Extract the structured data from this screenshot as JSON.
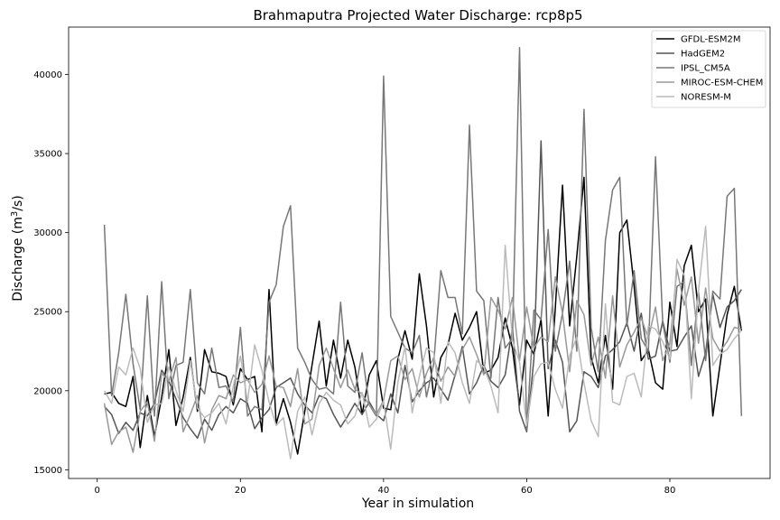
{
  "chart_data": {
    "type": "line",
    "title": "Brahmaputra Projected Water Discharge: rcp8p5",
    "xlabel": "Year in simulation",
    "ylabel_main": "Discharge (m",
    "ylabel_sup": "3",
    "ylabel_tail": "/s)",
    "xlim": [
      -4,
      94
    ],
    "ylim": [
      14450,
      43000
    ],
    "xticks": [
      0,
      20,
      40,
      60,
      80
    ],
    "yticks": [
      15000,
      20000,
      25000,
      30000,
      35000,
      40000
    ],
    "grid": false,
    "legend_position": "top-right",
    "series": [
      {
        "name": "GFDL-ESM2M",
        "color": "#000000",
        "values": [
          19800,
          19900,
          19200,
          19000,
          20900,
          16400,
          19700,
          17100,
          19600,
          22600,
          17800,
          19600,
          22100,
          18700,
          22600,
          21200,
          21100,
          20900,
          19100,
          21400,
          20700,
          20900,
          17400,
          26400,
          17900,
          19500,
          18000,
          16000,
          18700,
          21600,
          24400,
          20300,
          23200,
          20800,
          23200,
          21500,
          18500,
          21000,
          21900,
          18900,
          18800,
          22000,
          23800,
          22000,
          27400,
          24100,
          19600,
          22100,
          22900,
          24900,
          23200,
          24000,
          25000,
          21100,
          21300,
          22100,
          24600,
          22700,
          19100,
          23200,
          22300,
          24500,
          18400,
          25200,
          33000,
          24100,
          28500,
          33500,
          22100,
          20500,
          23500,
          20100,
          30000,
          30800,
          26600,
          21900,
          22600,
          20500,
          20100,
          25600,
          22800,
          27900,
          29200,
          25000,
          25800,
          18400,
          21600,
          24800,
          26600,
          23800
        ]
      },
      {
        "name": "HadGEM2",
        "color": "#555555",
        "values": [
          19000,
          18500,
          17300,
          18000,
          17500,
          18600,
          18400,
          19200,
          21300,
          20600,
          19500,
          18300,
          17600,
          17000,
          18200,
          17500,
          18500,
          19000,
          18600,
          19500,
          19200,
          17600,
          18300,
          18800,
          20200,
          20500,
          20800,
          19800,
          19100,
          18600,
          19700,
          19500,
          18500,
          17700,
          18400,
          19200,
          18500,
          19300,
          18500,
          18100,
          19800,
          18600,
          21600,
          19300,
          20000,
          20500,
          20800,
          20100,
          19400,
          21000,
          22800,
          19800,
          20500,
          21600,
          20600,
          20200,
          21000,
          24000,
          18700,
          17400,
          22000,
          35800,
          21400,
          23200,
          21800,
          17400,
          18100,
          21200,
          20900,
          20200,
          22200,
          22600,
          23100,
          24300,
          22500,
          24900,
          22000,
          22200,
          24400,
          22500,
          22600,
          23400,
          24100,
          20900,
          22400,
          26100,
          24000,
          25300,
          25700,
          26400
        ]
      },
      {
        "name": "IPSL_CM5A",
        "color": "#777777",
        "values": [
          30500,
          19700,
          22400,
          26100,
          21700,
          18800,
          26000,
          18400,
          26900,
          19500,
          21600,
          21800,
          26400,
          20500,
          19800,
          22700,
          20200,
          20300,
          19300,
          24000,
          18400,
          19000,
          18800,
          25600,
          26700,
          30400,
          31700,
          22700,
          21800,
          20700,
          20100,
          20200,
          19800,
          25600,
          20300,
          19900,
          22400,
          19100,
          18400,
          39900,
          24700,
          23700,
          22700,
          22400,
          23500,
          19600,
          21700,
          27600,
          25900,
          25900,
          23600,
          36800,
          26300,
          25700,
          20800,
          25900,
          22700,
          23300,
          41700,
          17500,
          25100,
          24500,
          30200,
          22500,
          24900,
          28200,
          22500,
          37800,
          24000,
          21200,
          29500,
          32700,
          33500,
          24100,
          27600,
          23300,
          22500,
          34800,
          24300,
          21800,
          26600,
          26900,
          21600,
          26300,
          21900,
          26300,
          25800,
          32300,
          32800,
          18400
        ]
      },
      {
        "name": "MIROC-ESM-CHEM",
        "color": "#999999",
        "values": [
          19200,
          16600,
          17400,
          17700,
          16100,
          18700,
          19300,
          16800,
          21100,
          20600,
          22100,
          17400,
          18500,
          19700,
          16700,
          18800,
          19700,
          19500,
          21000,
          20500,
          20700,
          19900,
          20400,
          22200,
          20300,
          20200,
          19000,
          21400,
          17900,
          18200,
          21600,
          22700,
          21400,
          20200,
          21300,
          20100,
          19800,
          19100,
          18500,
          19400,
          21900,
          22200,
          20700,
          21400,
          19600,
          21100,
          22100,
          20600,
          21500,
          20900,
          22600,
          23400,
          22300,
          21000,
          25900,
          25100,
          23900,
          25900,
          21900,
          25300,
          22700,
          23400,
          23100,
          27200,
          24900,
          21200,
          25700,
          24800,
          21600,
          23400,
          20800,
          26000,
          21500,
          22900,
          23700,
          24600,
          23300,
          25300,
          21900,
          23000,
          27700,
          25400,
          27200,
          23000,
          26500,
          23300,
          22500,
          23100,
          24000,
          23900
        ]
      },
      {
        "name": "NORESM-M",
        "color": "#bbbbbb",
        "values": [
          20000,
          19200,
          21500,
          21000,
          22700,
          21400,
          18000,
          19100,
          19200,
          21500,
          20000,
          18700,
          21900,
          18900,
          18300,
          18600,
          19200,
          17900,
          20300,
          22200,
          19300,
          22900,
          21300,
          19300,
          17800,
          18300,
          15700,
          18700,
          19600,
          17200,
          19200,
          19900,
          19400,
          19100,
          17900,
          18400,
          19900,
          17700,
          18200,
          19300,
          16300,
          20500,
          22800,
          18600,
          20900,
          22700,
          22400,
          19200,
          23100,
          22400,
          20500,
          19200,
          21900,
          21500,
          20300,
          18600,
          29200,
          23200,
          21800,
          17800,
          20900,
          21700,
          21800,
          20100,
          18900,
          22200,
          23400,
          20500,
          18100,
          17100,
          25500,
          19300,
          19100,
          20900,
          21100,
          19600,
          24100,
          23900,
          23100,
          22000,
          28300,
          27300,
          19500,
          26300,
          30400,
          21600,
          22300,
          22600,
          23300,
          23800
        ]
      }
    ]
  }
}
